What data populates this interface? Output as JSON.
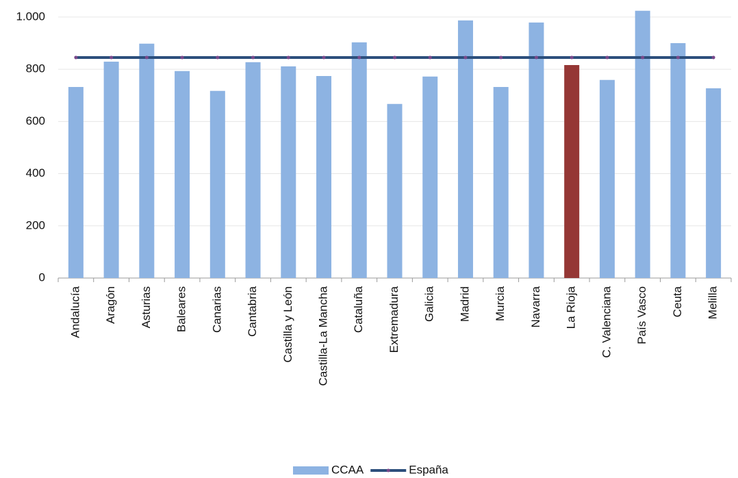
{
  "chart_data": {
    "type": "bar",
    "categories": [
      "Andalucía",
      "Aragón",
      "Asturias",
      "Baleares",
      "Canarias",
      "Cantabria",
      "Castilla y León",
      "Castilla-La Mancha",
      "Cataluña",
      "Extremadura",
      "Galicia",
      "Madrid",
      "Murcia",
      "Navarra",
      "La Rioja",
      "C. Valenciana",
      "País Vasco",
      "Ceuta",
      "Melilla"
    ],
    "series": [
      {
        "name": "CCAA",
        "type": "bar",
        "color": "#8db3e2",
        "colors": [
          "#8db3e2",
          "#8db3e2",
          "#8db3e2",
          "#8db3e2",
          "#8db3e2",
          "#8db3e2",
          "#8db3e2",
          "#8db3e2",
          "#8db3e2",
          "#8db3e2",
          "#8db3e2",
          "#8db3e2",
          "#8db3e2",
          "#8db3e2",
          "#953735",
          "#8db3e2",
          "#8db3e2",
          "#8db3e2",
          "#8db3e2"
        ],
        "values": [
          732,
          829,
          898,
          793,
          717,
          827,
          811,
          774,
          903,
          667,
          772,
          987,
          732,
          979,
          816,
          759,
          1024,
          900,
          727
        ]
      },
      {
        "name": "España",
        "type": "line",
        "color": "#2c4f7c",
        "marker_color": "#7a4a8c",
        "values": [
          845,
          845,
          845,
          845,
          845,
          845,
          845,
          845,
          845,
          845,
          845,
          845,
          845,
          845,
          845,
          845,
          845,
          845,
          845
        ]
      }
    ],
    "ylim": [
      0,
      1060
    ],
    "yticks": [
      0,
      200,
      400,
      600,
      800,
      {
        "value": 1000,
        "label": "1.000"
      }
    ],
    "grid": true
  }
}
